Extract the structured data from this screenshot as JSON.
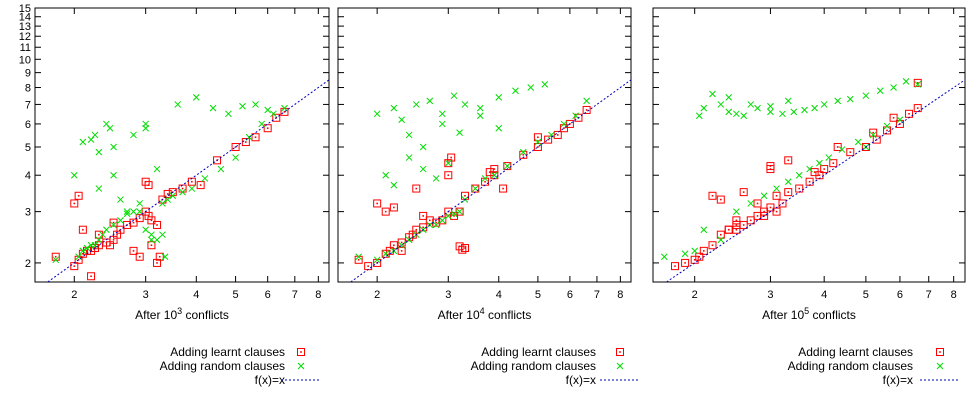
{
  "chart_data": [
    {
      "type": "scatter",
      "xlabel": "After 10^3 conflicts",
      "xlabel_base": "After 10",
      "xlabel_exp": "3",
      "xlabel_suffix": " conflicts",
      "xscale": "log",
      "yscale": "log",
      "xlim": [
        1.6,
        8.5
      ],
      "ylim": [
        1.72,
        15
      ],
      "xticks": [
        2,
        3,
        4,
        5,
        6,
        7,
        8
      ],
      "yticks": [
        2,
        3,
        4,
        5,
        6,
        7,
        8,
        9,
        10,
        11,
        12,
        13,
        14,
        15
      ],
      "legend": [
        "Adding learnt clauses",
        "Adding random clauses",
        "f(x)=x"
      ],
      "legend_position": "bottom",
      "series": [
        {
          "name": "Adding learnt clauses",
          "color": "#ff0000",
          "marker": "square-dot",
          "x": [
            1.8,
            2.0,
            2.05,
            2.1,
            2.15,
            2.2,
            2.25,
            2.3,
            2.4,
            2.45,
            2.5,
            2.55,
            2.6,
            2.7,
            2.8,
            2.9,
            3.0,
            3.05,
            3.1,
            3.2,
            3.3,
            3.5,
            3.7,
            3.9,
            4.1,
            4.5,
            5.0,
            5.3,
            5.6,
            6.0,
            6.3,
            6.6,
            2.1,
            2.3,
            2.5,
            2.2,
            3.0,
            3.05,
            2.8,
            3.1,
            2.9,
            3.25,
            3.2,
            2.05,
            2.0,
            3.4
          ],
          "y": [
            2.1,
            1.95,
            2.05,
            2.15,
            2.2,
            2.2,
            2.25,
            2.3,
            2.35,
            2.3,
            2.4,
            2.5,
            2.6,
            2.7,
            2.75,
            2.85,
            3.0,
            2.9,
            2.8,
            2.7,
            3.3,
            3.5,
            3.6,
            3.8,
            3.7,
            4.5,
            5.0,
            5.2,
            5.4,
            5.8,
            6.3,
            6.6,
            2.6,
            2.5,
            2.75,
            1.8,
            3.8,
            3.7,
            2.2,
            2.3,
            2.1,
            2.1,
            2.0,
            3.4,
            3.2,
            3.45
          ]
        },
        {
          "name": "Adding random clauses",
          "color": "#00dd00",
          "marker": "x",
          "x": [
            1.8,
            2.05,
            2.1,
            2.15,
            2.2,
            2.25,
            2.3,
            2.35,
            2.4,
            2.5,
            2.6,
            2.7,
            2.8,
            2.9,
            3.0,
            3.1,
            3.2,
            3.3,
            3.5,
            3.7,
            3.9,
            4.2,
            4.6,
            5.0,
            5.4,
            5.8,
            6.2,
            6.6,
            2.0,
            2.1,
            2.2,
            2.25,
            2.3,
            2.5,
            2.7,
            3.0,
            3.0,
            3.6,
            4.0,
            4.4,
            4.8,
            5.2,
            5.6,
            6.0,
            2.4,
            2.45,
            2.5,
            2.6,
            2.9,
            3.2,
            3.3,
            3.4,
            2.3,
            2.8,
            3.1,
            3.35
          ],
          "y": [
            2.05,
            2.1,
            2.2,
            2.25,
            2.3,
            2.3,
            2.4,
            2.5,
            2.6,
            2.7,
            2.8,
            2.95,
            3.0,
            3.0,
            2.6,
            2.5,
            2.4,
            2.5,
            3.4,
            3.5,
            3.6,
            3.9,
            4.2,
            4.6,
            5.4,
            6.0,
            6.5,
            6.8,
            4.0,
            5.2,
            5.3,
            5.5,
            3.6,
            5.0,
            3.0,
            5.8,
            6.0,
            7.0,
            7.4,
            6.8,
            6.5,
            6.9,
            7.0,
            6.7,
            6.0,
            5.8,
            4.0,
            3.3,
            3.2,
            4.2,
            3.2,
            3.3,
            4.8,
            5.5,
            2.4,
            2.1
          ]
        },
        {
          "name": "f(x)=x",
          "color": "#0000bb",
          "type": "line",
          "x": [
            1.72,
            8.5
          ],
          "y": [
            1.72,
            8.5
          ]
        }
      ]
    },
    {
      "type": "scatter",
      "xlabel": "After 10^4 conflicts",
      "xlabel_base": "After 10",
      "xlabel_exp": "4",
      "xlabel_suffix": " conflicts",
      "xscale": "log",
      "yscale": "log",
      "xlim": [
        1.6,
        8.5
      ],
      "ylim": [
        1.72,
        15
      ],
      "xticks": [
        2,
        3,
        4,
        5,
        6,
        7,
        8
      ],
      "legend": [
        "Adding learnt clauses",
        "Adding random clauses",
        "f(x)=x"
      ],
      "legend_position": "bottom",
      "series": [
        {
          "name": "Adding learnt clauses",
          "color": "#ff0000",
          "marker": "square-dot",
          "x": [
            1.8,
            1.9,
            2.0,
            2.1,
            2.15,
            2.2,
            2.3,
            2.4,
            2.5,
            2.6,
            2.7,
            2.8,
            2.9,
            3.0,
            3.1,
            3.2,
            3.3,
            3.5,
            3.7,
            3.9,
            4.2,
            4.6,
            5.0,
            5.3,
            5.6,
            6.0,
            6.3,
            6.6,
            2.0,
            2.1,
            2.2,
            2.5,
            2.6,
            3.0,
            3.0,
            3.05,
            3.3,
            3.25,
            3.2,
            2.3,
            2.45,
            3.8,
            3.9,
            4.1,
            5.0,
            5.8
          ],
          "y": [
            2.05,
            1.95,
            2.0,
            2.15,
            2.2,
            2.3,
            2.35,
            2.45,
            2.6,
            2.65,
            2.8,
            2.75,
            2.8,
            3.0,
            2.9,
            3.0,
            3.4,
            3.6,
            3.8,
            4.0,
            4.3,
            4.7,
            5.0,
            5.3,
            5.5,
            6.0,
            6.3,
            6.7,
            3.2,
            3.0,
            3.1,
            3.6,
            2.9,
            4.0,
            4.4,
            4.6,
            2.25,
            2.22,
            2.28,
            2.2,
            2.5,
            4.1,
            4.2,
            3.6,
            5.4,
            5.8
          ]
        },
        {
          "name": "Adding random clauses",
          "color": "#00dd00",
          "marker": "x",
          "x": [
            1.8,
            2.0,
            2.1,
            2.2,
            2.3,
            2.4,
            2.5,
            2.6,
            2.7,
            2.8,
            2.9,
            3.0,
            3.1,
            3.2,
            3.3,
            3.5,
            3.7,
            3.9,
            4.2,
            4.6,
            5.0,
            5.4,
            5.8,
            6.2,
            6.6,
            2.0,
            2.2,
            2.3,
            2.5,
            2.7,
            2.9,
            3.1,
            3.3,
            3.6,
            4.0,
            4.4,
            4.8,
            5.2,
            2.4,
            2.6,
            2.9,
            3.2,
            3.6,
            4.0,
            2.1,
            2.2,
            2.4,
            2.6,
            2.8,
            3.0
          ],
          "y": [
            2.1,
            2.05,
            2.15,
            2.2,
            2.3,
            2.4,
            2.5,
            2.6,
            2.7,
            2.7,
            2.8,
            2.9,
            2.95,
            3.0,
            3.3,
            3.6,
            3.9,
            4.0,
            4.3,
            4.8,
            5.2,
            5.5,
            6.0,
            6.4,
            7.2,
            6.5,
            6.8,
            6.2,
            7.0,
            7.2,
            6.5,
            7.5,
            7.0,
            6.8,
            7.4,
            7.8,
            8.0,
            8.2,
            5.5,
            5.0,
            6.0,
            5.6,
            6.4,
            5.8,
            4.0,
            3.7,
            4.6,
            4.2,
            3.9,
            4.4
          ]
        },
        {
          "name": "f(x)=x",
          "color": "#0000bb",
          "type": "line",
          "x": [
            1.72,
            8.5
          ],
          "y": [
            1.72,
            8.5
          ]
        }
      ]
    },
    {
      "type": "scatter",
      "xlabel": "After 10^5 conflicts",
      "xlabel_base": "After 10",
      "xlabel_exp": "5",
      "xlabel_suffix": " conflicts",
      "xscale": "log",
      "yscale": "log",
      "xlim": [
        1.6,
        8.5
      ],
      "ylim": [
        1.72,
        15
      ],
      "xticks": [
        2,
        3,
        4,
        5,
        6,
        7,
        8
      ],
      "legend": [
        "Adding learnt clauses",
        "Adding random clauses",
        "f(x)=x"
      ],
      "legend_position": "bottom",
      "series": [
        {
          "name": "Adding learnt clauses",
          "color": "#ff0000",
          "marker": "square-dot",
          "x": [
            1.8,
            1.9,
            2.0,
            2.05,
            2.1,
            2.2,
            2.3,
            2.4,
            2.5,
            2.6,
            2.7,
            2.8,
            2.9,
            3.0,
            3.1,
            3.2,
            3.3,
            3.5,
            3.7,
            3.9,
            4.2,
            4.6,
            5.0,
            5.3,
            5.6,
            6.0,
            6.3,
            6.6,
            2.2,
            2.3,
            2.5,
            2.6,
            2.8,
            3.0,
            3.0,
            3.3,
            3.1,
            2.9,
            2.4,
            2.5,
            3.8,
            4.0,
            4.3,
            5.2,
            5.8,
            6.6
          ],
          "y": [
            1.95,
            2.0,
            2.05,
            2.1,
            2.2,
            2.3,
            2.5,
            2.6,
            2.6,
            2.7,
            2.8,
            2.9,
            3.0,
            3.1,
            3.0,
            3.2,
            3.5,
            3.6,
            3.8,
            4.0,
            4.4,
            4.8,
            5.0,
            5.3,
            5.7,
            6.0,
            6.5,
            6.8,
            3.4,
            3.3,
            2.7,
            3.5,
            3.2,
            4.3,
            4.2,
            4.5,
            3.4,
            2.9,
            2.6,
            2.8,
            4.1,
            4.2,
            5.0,
            5.6,
            6.3,
            8.3
          ]
        },
        {
          "name": "Adding random clauses",
          "color": "#00dd00",
          "marker": "x",
          "x": [
            1.7,
            1.9,
            2.0,
            2.05,
            2.1,
            2.2,
            2.3,
            2.4,
            2.5,
            2.6,
            2.8,
            3.0,
            3.2,
            3.4,
            3.6,
            3.8,
            4.0,
            4.3,
            4.6,
            5.0,
            5.4,
            5.8,
            6.2,
            6.6,
            2.1,
            2.3,
            2.5,
            2.7,
            2.9,
            3.1,
            3.3,
            3.5,
            3.7,
            3.9,
            4.1,
            4.4,
            4.8,
            5.2,
            5.6,
            6.0,
            2.4,
            2.7,
            3.0,
            3.3,
            5.0
          ],
          "y": [
            2.1,
            2.15,
            2.2,
            6.4,
            6.8,
            7.6,
            7.0,
            6.6,
            6.5,
            6.4,
            6.8,
            6.6,
            6.5,
            6.6,
            6.7,
            6.8,
            7.0,
            7.2,
            7.3,
            7.5,
            7.8,
            8.0,
            8.4,
            8.2,
            2.6,
            2.4,
            3.0,
            3.2,
            3.4,
            3.6,
            3.8,
            4.0,
            4.2,
            4.4,
            4.6,
            4.9,
            5.2,
            5.5,
            5.9,
            6.2,
            7.4,
            7.0,
            6.9,
            7.2,
            5.0
          ]
        },
        {
          "name": "f(x)=x",
          "color": "#0000bb",
          "type": "line",
          "x": [
            1.72,
            8.5
          ],
          "y": [
            1.72,
            8.5
          ]
        }
      ]
    }
  ]
}
